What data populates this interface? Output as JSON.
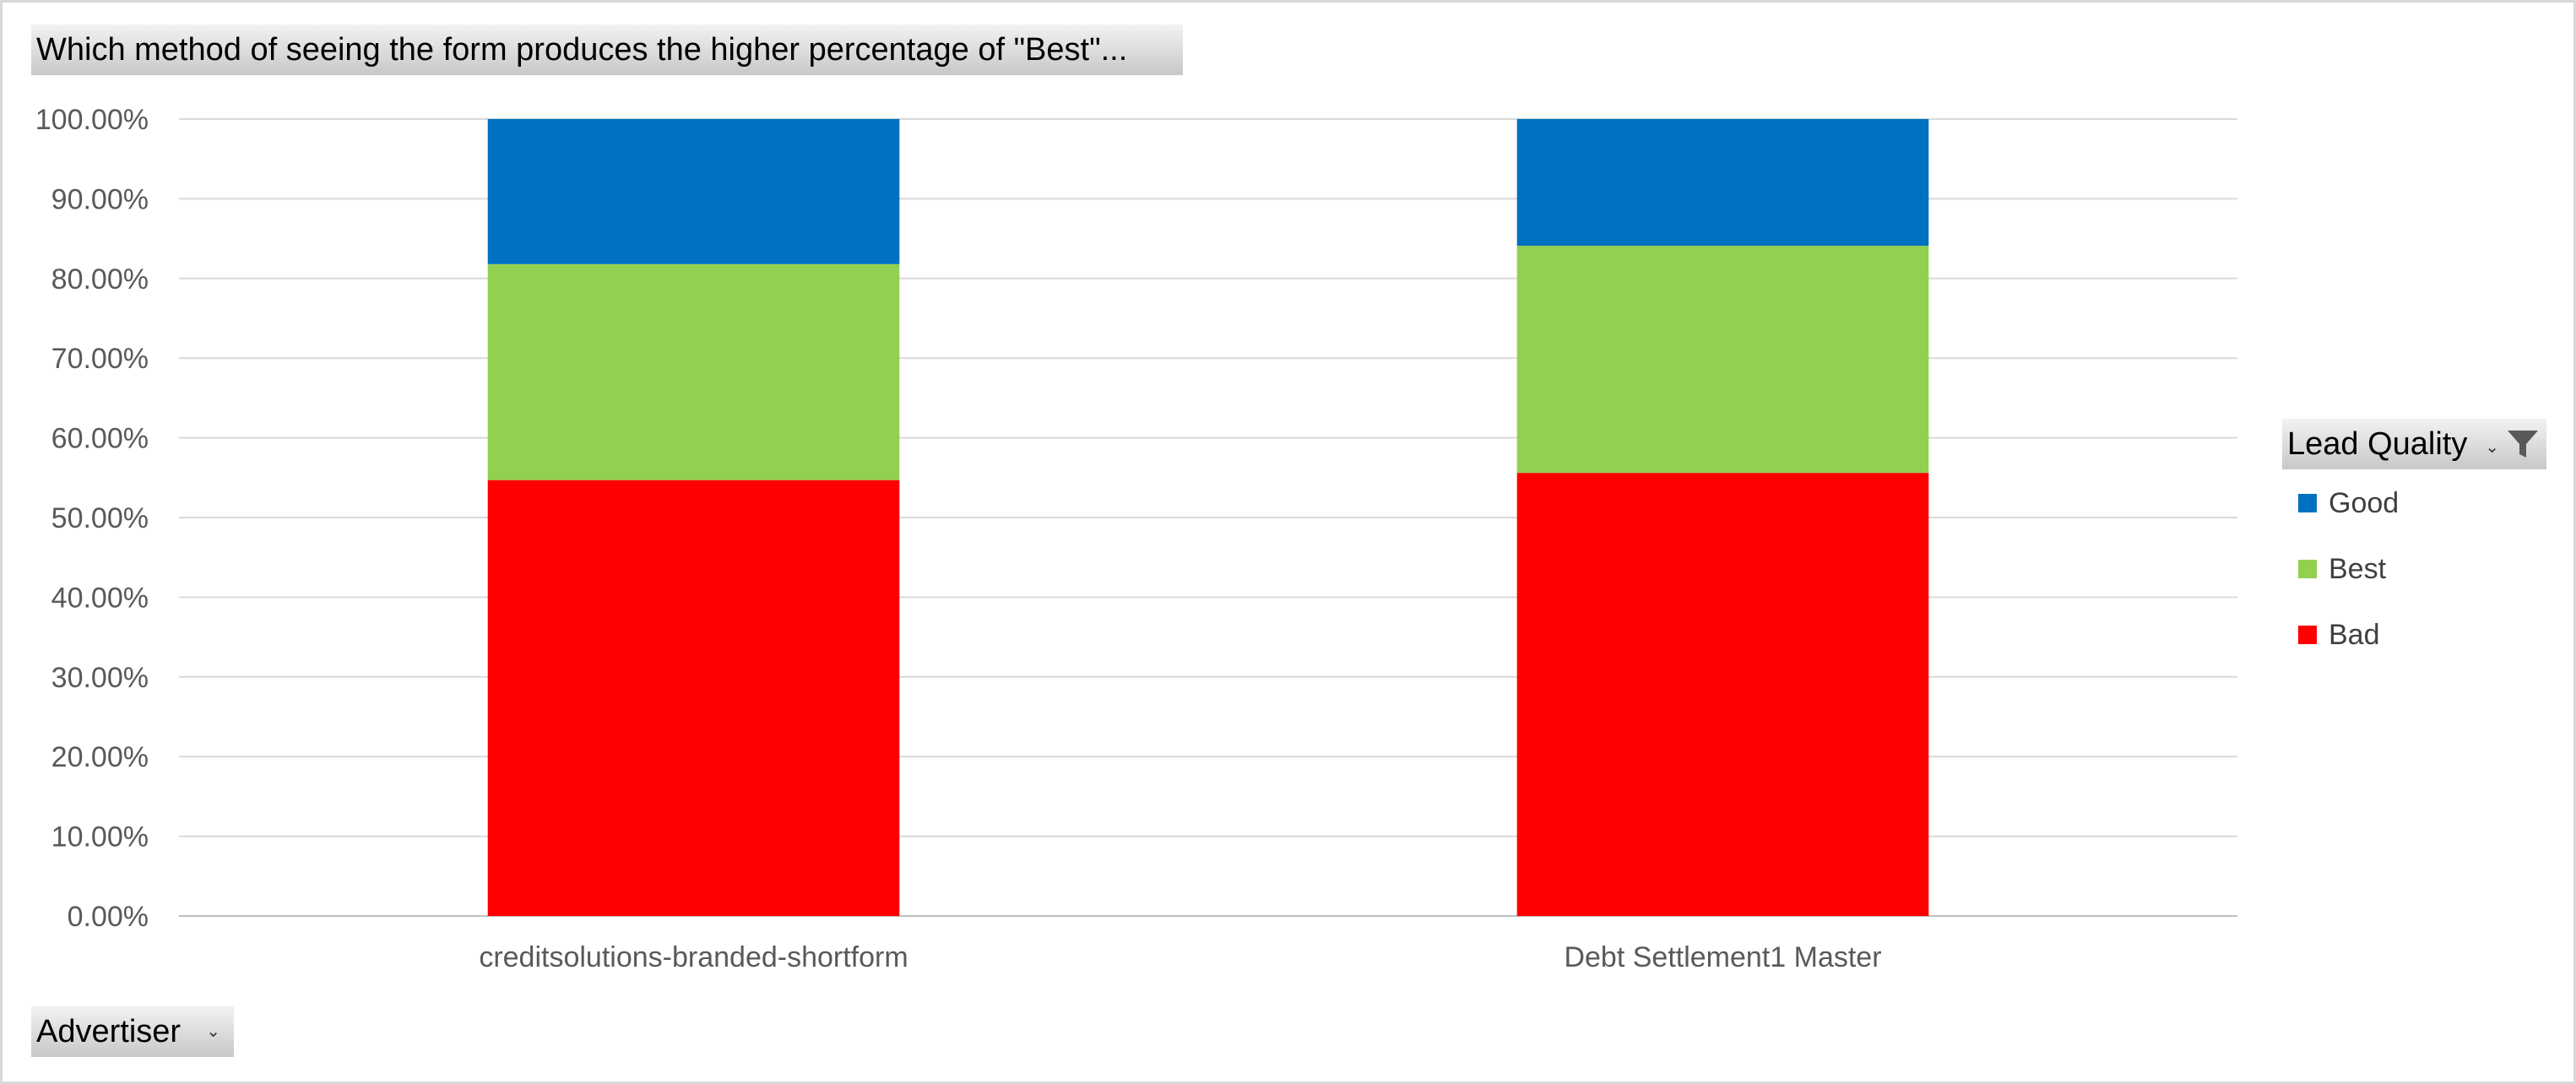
{
  "pivot": {
    "title_field": "Which method of seeing the form produces the higher percentage of \"Best\"...",
    "axis_field": "Advertiser",
    "legend_field": "Lead Quality"
  },
  "icons": {
    "dropdown": "dropdown-arrow-icon",
    "filter": "filter-funnel-icon"
  },
  "chart_data": {
    "type": "bar",
    "stacked": true,
    "categories": [
      "creditsolutions-branded-shortform",
      "Debt Settlement1 Master"
    ],
    "series": [
      {
        "name": "Bad",
        "color": "#ff0000",
        "values": [
          0.547,
          0.556
        ]
      },
      {
        "name": "Best",
        "color": "#92d050",
        "values": [
          0.271,
          0.285
        ]
      },
      {
        "name": "Good",
        "color": "#0070c0",
        "values": [
          0.182,
          0.159
        ]
      }
    ],
    "legend_order": [
      "Good",
      "Best",
      "Bad"
    ],
    "ylim": [
      0,
      1
    ],
    "yticks": [
      "0.00%",
      "10.00%",
      "20.00%",
      "30.00%",
      "40.00%",
      "50.00%",
      "60.00%",
      "70.00%",
      "80.00%",
      "90.00%",
      "100.00%"
    ],
    "grid": true,
    "legend_position": "right"
  }
}
